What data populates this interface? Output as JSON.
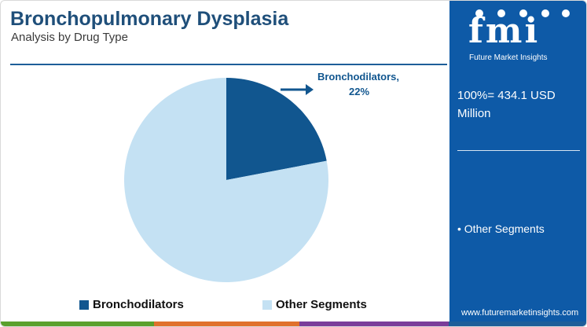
{
  "header": {
    "title": "Bronchopulmonary Dysplasia",
    "subtitle": "Analysis by Drug Type"
  },
  "chart_data": {
    "type": "pie",
    "title": "Bronchopulmonary Dysplasia",
    "subtitle": "Analysis by Drug Type",
    "slices": [
      {
        "name": "Bronchodilators",
        "value": 22,
        "color": "#11568f"
      },
      {
        "name": "Other Segments",
        "value": 78,
        "color": "#c4e1f3"
      }
    ],
    "annotations": [
      {
        "target": "Bronchodilators",
        "text_line1": "Bronchodilators,",
        "text_line2": "22%"
      }
    ],
    "legend": {
      "position": "bottom",
      "items": [
        "Bronchodilators",
        "Other Segments"
      ]
    }
  },
  "sidebar": {
    "logo_text": "fmi",
    "logo_tagline": "Future Market Insights",
    "total_label": "100%= 434.1 USD Million",
    "bullet_item": "• Other Segments",
    "website": "www.futuremarketinsights.com"
  },
  "colors": {
    "title": "#1f4f7a",
    "sidebar_bg": "#0e5aa7",
    "accent_bar": [
      "#5aa02c",
      "#e0712c",
      "#7a3d9a",
      "#1d5e99"
    ]
  }
}
